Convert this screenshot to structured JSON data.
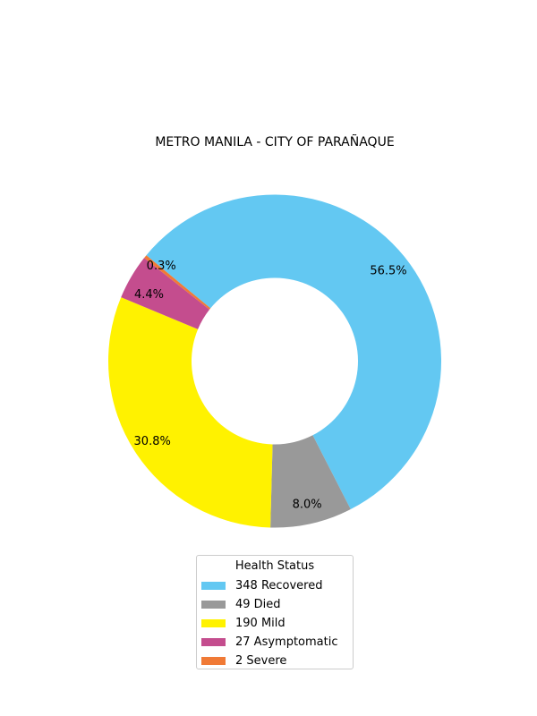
{
  "chart_data": {
    "type": "pie",
    "donut": true,
    "title": "METRO MANILA - CITY OF PARAÑAQUE",
    "legend_title": "Health Status",
    "legend_position": "bottom",
    "slices": [
      {
        "label": "Recovered",
        "value": 348,
        "percent_label": "56.5%",
        "color": "#63c8f2"
      },
      {
        "label": "Died",
        "value": 49,
        "percent_label": "8.0%",
        "color": "#999999"
      },
      {
        "label": "Mild",
        "value": 190,
        "percent_label": "30.8%",
        "color": "#fff200"
      },
      {
        "label": "Asymptomatic",
        "value": 27,
        "percent_label": "4.4%",
        "color": "#c44d8e"
      },
      {
        "label": "Severe",
        "value": 2,
        "percent_label": "0.3%",
        "color": "#f07a36"
      }
    ],
    "legend_entries": [
      "348  Recovered",
      "49  Died",
      "190  Mild",
      "27  Asymptomatic",
      "2  Severe"
    ]
  }
}
